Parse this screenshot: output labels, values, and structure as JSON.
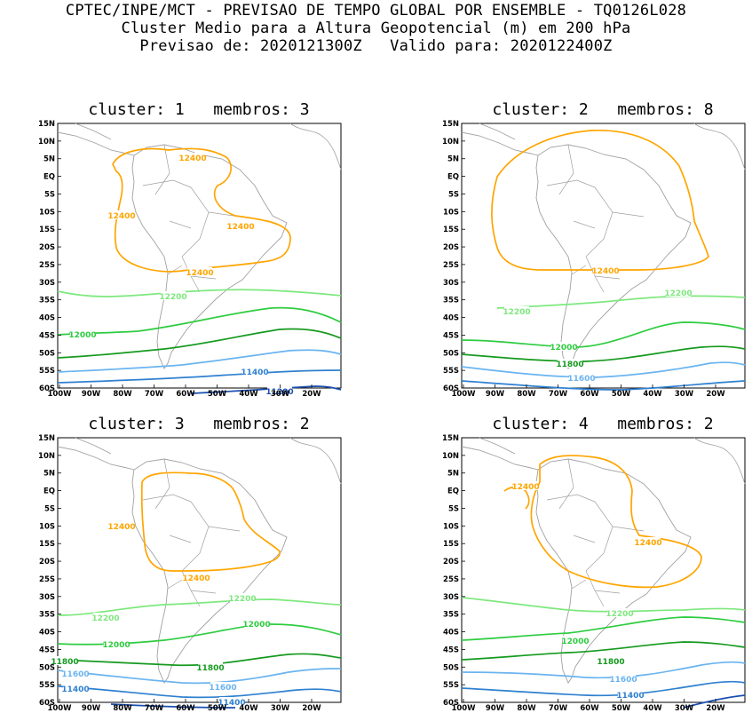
{
  "header": {
    "line1": "CPTEC/INPE/MCT - PREVISAO DE TEMPO GLOBAL POR ENSEMBLE - TQ0126L028",
    "line2": "Cluster Medio para a Altura Geopotencial (m) em 200 hPa",
    "line3": "Previsao de: 2020121300Z   Valido para: 2020122400Z"
  },
  "map_axes": {
    "lat_ticks": [
      "15N",
      "10N",
      "5N",
      "EQ",
      "5S",
      "10S",
      "15S",
      "20S",
      "25S",
      "30S",
      "35S",
      "40S",
      "45S",
      "50S",
      "55S",
      "60S"
    ],
    "lon_ticks": [
      "100W",
      "90W",
      "80W",
      "70W",
      "60W",
      "50W",
      "40W",
      "30W",
      "20W"
    ]
  },
  "colors": {
    "12400": "#ffa500",
    "12200": "#7ee87e",
    "12000": "#2ecc40",
    "11800": "#159a1f",
    "11600": "#6ab4f0",
    "11400": "#2f80d0",
    "11200": "#1a4fb0",
    "coast": "#a0a0a0"
  },
  "panels": [
    {
      "title": "cluster: 1   membros: 3",
      "labels": [
        "12400",
        "12400",
        "12400",
        "12400",
        "12200",
        "12000",
        "11400",
        "11200"
      ]
    },
    {
      "title": "cluster: 2   membros: 8",
      "labels": [
        "12400",
        "12200",
        "12200",
        "12000",
        "11800",
        "11600"
      ]
    },
    {
      "title": "cluster: 3   membros: 2",
      "labels": [
        "12400",
        "12400",
        "12200",
        "12200",
        "12000",
        "12000",
        "11800",
        "11800",
        "11600",
        "11600",
        "11400",
        "11400"
      ]
    },
    {
      "title": "cluster: 4   membros: 2",
      "labels": [
        "12400",
        "12400",
        "12200",
        "12000",
        "11800",
        "11600",
        "11400"
      ]
    }
  ]
}
